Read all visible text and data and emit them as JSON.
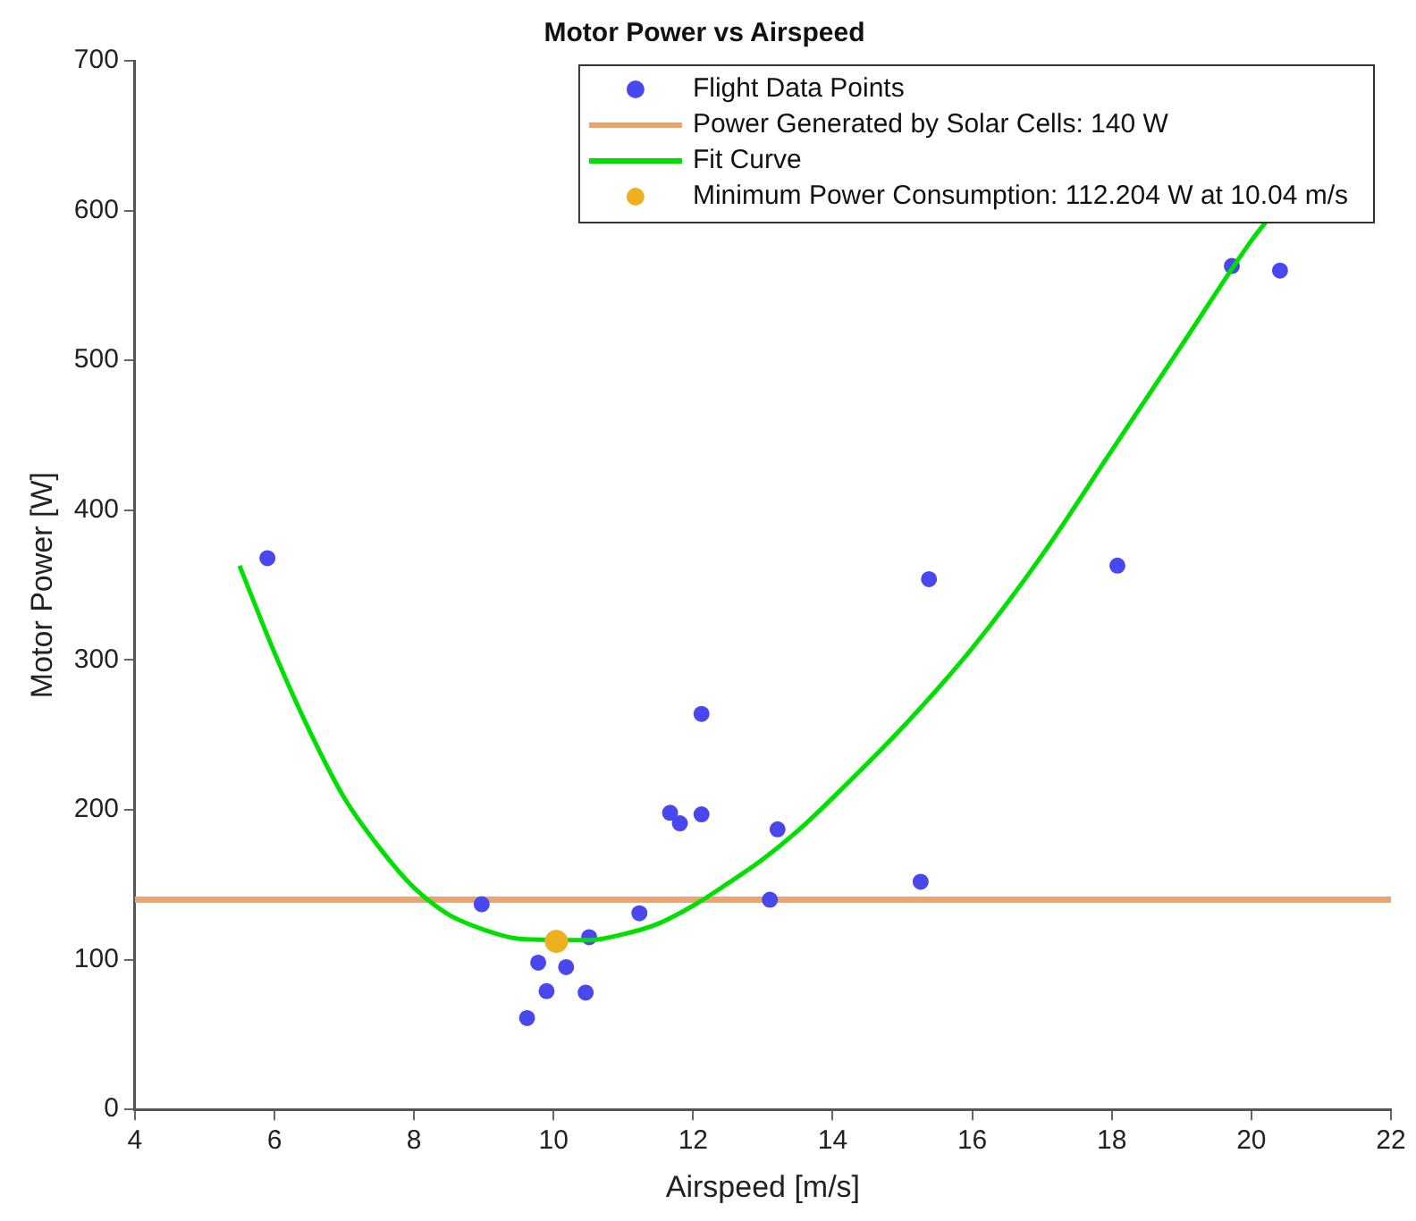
{
  "chart_data": {
    "type": "scatter",
    "title": "Motor Power vs Airspeed",
    "xlabel": "Airspeed [m/s]",
    "ylabel": "Motor Power [W]",
    "xlim": [
      4,
      22
    ],
    "xticks": [
      4,
      6,
      8,
      10,
      12,
      14,
      16,
      18,
      20,
      22
    ],
    "ylim": [
      0,
      700
    ],
    "yticks": [
      0,
      100,
      200,
      300,
      400,
      500,
      600,
      700
    ],
    "grid": false,
    "legend": "top right",
    "marker": "circle",
    "ref_lines": [
      {
        "axis": "y",
        "value": 140,
        "label": "Power Generated by Solar Cells: 140 W",
        "color": "#eda36e"
      }
    ],
    "series": [
      {
        "name": "Flight Data Points",
        "color": "#4848ee",
        "x": [
          5.9,
          8.97,
          9.78,
          9.62,
          9.9,
          10.18,
          10.51,
          10.46,
          11.23,
          11.67,
          11.81,
          12.12,
          12.12,
          13.1,
          13.21,
          15.26,
          15.38,
          18.08,
          19.72,
          20.41
        ],
        "values": [
          368,
          137,
          98,
          61,
          79,
          95,
          115,
          78,
          131,
          198,
          191,
          197,
          264,
          140,
          187,
          152,
          354,
          363,
          563,
          560
        ]
      },
      {
        "name": "Fit Curve",
        "type": "line",
        "marker": "none",
        "color": "#00e000",
        "x": [
          5.5,
          6,
          6.5,
          7,
          7.5,
          8,
          8.5,
          9,
          9.5,
          10.5,
          11,
          11.5,
          12,
          12.5,
          13,
          13.5,
          14,
          15,
          16,
          17,
          18,
          19,
          20,
          20.2
        ],
        "values": [
          363,
          305,
          253,
          208,
          175,
          148,
          130,
          120,
          114,
          113,
          117,
          124,
          136,
          151,
          167,
          186,
          208,
          255,
          308,
          370,
          440,
          510,
          580,
          592
        ]
      },
      {
        "name": "Minimum Power Consumption: 112.204 W at 10.04 m/s",
        "color": "#edb120",
        "x": [
          10.04
        ],
        "values": [
          112.204
        ]
      }
    ]
  }
}
